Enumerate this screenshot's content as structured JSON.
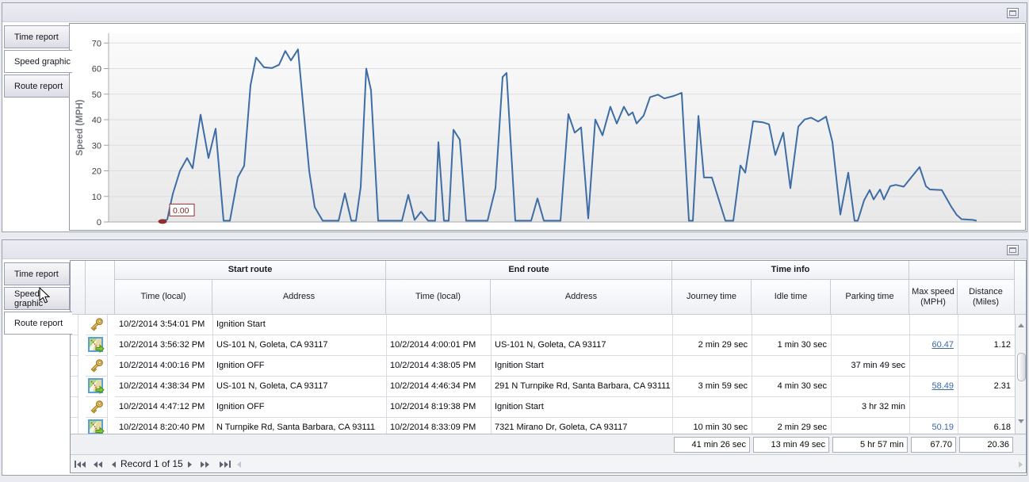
{
  "tabs": {
    "items": [
      "Time report",
      "Speed graphic",
      "Route report"
    ]
  },
  "top_panel": {
    "selected_tab": "Speed graphic"
  },
  "bottom_panel": {
    "selected_tab": "Route report"
  },
  "chart_data": {
    "type": "line",
    "title": "",
    "xlabel": "",
    "ylabel": "Speed (MPH)",
    "ylim": [
      0,
      73.8
    ],
    "yticks": [
      0,
      10,
      20,
      30,
      40,
      50,
      60,
      70
    ],
    "grid": "horizontal",
    "legend": "none",
    "line_color": "#3e6da5",
    "annotation": {
      "label": "0.00",
      "value": 0,
      "marker_color": "#8e2f2f"
    },
    "series": [
      {
        "name": "Speed (MPH)",
        "points": [
          [
            5.91,
            0.5
          ],
          [
            6.43,
            1
          ],
          [
            7.04,
            11
          ],
          [
            7.82,
            20
          ],
          [
            8.6,
            25
          ],
          [
            9.21,
            21
          ],
          [
            10.08,
            42
          ],
          [
            10.95,
            25
          ],
          [
            11.73,
            36.5
          ],
          [
            12.6,
            0.5
          ],
          [
            13.29,
            0.5
          ],
          [
            14.16,
            17.5
          ],
          [
            14.86,
            22
          ],
          [
            15.55,
            53.5
          ],
          [
            16.16,
            64.3
          ],
          [
            17.03,
            60.5
          ],
          [
            17.9,
            60.2
          ],
          [
            18.68,
            61.5
          ],
          [
            19.37,
            66.9
          ],
          [
            19.98,
            63.2
          ],
          [
            20.76,
            67.5
          ],
          [
            21.98,
            20
          ],
          [
            22.59,
            5.8
          ],
          [
            23.46,
            0.5
          ],
          [
            25.2,
            0.5
          ],
          [
            25.89,
            11.2
          ],
          [
            26.59,
            0.5
          ],
          [
            27.11,
            0.5
          ],
          [
            27.63,
            13.7
          ],
          [
            28.24,
            60
          ],
          [
            28.76,
            51.5
          ],
          [
            29.54,
            0.5
          ],
          [
            32.15,
            0.5
          ],
          [
            32.84,
            10.6
          ],
          [
            33.54,
            0.8
          ],
          [
            34.23,
            4
          ],
          [
            35.01,
            0.5
          ],
          [
            35.79,
            0.5
          ],
          [
            36.14,
            31.2
          ],
          [
            36.75,
            0.5
          ],
          [
            37.27,
            0.5
          ],
          [
            37.79,
            36.1
          ],
          [
            38.49,
            32.2
          ],
          [
            39.18,
            0.5
          ],
          [
            41.53,
            0.5
          ],
          [
            42.4,
            13.2
          ],
          [
            43.18,
            56.7
          ],
          [
            43.61,
            58.3
          ],
          [
            44.57,
            0.5
          ],
          [
            46.31,
            0.5
          ],
          [
            47.0,
            9.2
          ],
          [
            47.7,
            0.5
          ],
          [
            49.52,
            0.5
          ],
          [
            50.39,
            42.2
          ],
          [
            51.09,
            34.9
          ],
          [
            51.78,
            37
          ],
          [
            52.56,
            1.4
          ],
          [
            53.34,
            40.1
          ],
          [
            54.13,
            33.9
          ],
          [
            54.99,
            45.1
          ],
          [
            55.69,
            38.5
          ],
          [
            56.47,
            45.1
          ],
          [
            56.99,
            41.7
          ],
          [
            57.43,
            42.9
          ],
          [
            57.86,
            38.5
          ],
          [
            58.64,
            41.6
          ],
          [
            59.34,
            48.8
          ],
          [
            60.21,
            49.8
          ],
          [
            60.9,
            48.3
          ],
          [
            61.95,
            49.3
          ],
          [
            62.81,
            50.5
          ],
          [
            63.6,
            0.5
          ],
          [
            64.03,
            0.5
          ],
          [
            64.64,
            41.5
          ],
          [
            65.25,
            17.4
          ],
          [
            66.12,
            17.4
          ],
          [
            67.59,
            0.5
          ],
          [
            68.46,
            0.5
          ],
          [
            69.24,
            22.1
          ],
          [
            69.77,
            19.3
          ],
          [
            70.63,
            39.4
          ],
          [
            71.68,
            39.0
          ],
          [
            72.37,
            38.2
          ],
          [
            73.07,
            26.2
          ],
          [
            73.94,
            34.9
          ],
          [
            74.72,
            13.2
          ],
          [
            75.59,
            37.3
          ],
          [
            76.28,
            40.1
          ],
          [
            76.98,
            40.8
          ],
          [
            77.76,
            39.3
          ],
          [
            78.63,
            41.2
          ],
          [
            79.32,
            31.3
          ],
          [
            80.19,
            2.9
          ],
          [
            81.06,
            19.3
          ],
          [
            81.75,
            0.5
          ],
          [
            82.1,
            0.5
          ],
          [
            82.8,
            8.5
          ],
          [
            83.41,
            12.5
          ],
          [
            83.84,
            8.8
          ],
          [
            84.54,
            12.7
          ],
          [
            84.97,
            8.8
          ],
          [
            85.66,
            14
          ],
          [
            86.27,
            14.5
          ],
          [
            87.14,
            13.8
          ],
          [
            88.88,
            21.5
          ],
          [
            89.57,
            14
          ],
          [
            90.01,
            12.7
          ],
          [
            91.31,
            12.5
          ],
          [
            92.35,
            6
          ],
          [
            92.96,
            2.7
          ],
          [
            93.48,
            1.1
          ],
          [
            94.7,
            0.8
          ],
          [
            95.13,
            0.5
          ]
        ]
      }
    ]
  },
  "grid": {
    "headers": {
      "start_route": "Start route",
      "end_route": "End route",
      "time_info": "Time info",
      "time_local": "Time (local)",
      "address": "Address",
      "journey": "Journey time",
      "idle": "Idle time",
      "parking": "Parking time",
      "max_speed": "Max speed (MPH)",
      "distance": "Distance (Miles)"
    },
    "rows": [
      {
        "icon": "key",
        "start_time": "10/2/2014 3:54:01 PM",
        "start_address": "Ignition Start",
        "end_time": "",
        "end_address": "",
        "journey": "",
        "idle": "",
        "parking": "",
        "max_speed": "",
        "distance": ""
      },
      {
        "icon": "route",
        "start_time": "10/2/2014 3:56:32 PM",
        "start_address": "US-101 N, Goleta, CA 93117",
        "end_time": "10/2/2014 4:00:01 PM",
        "end_address": "US-101 N, Goleta, CA 93117",
        "journey": "2 min 29 sec",
        "idle": "1 min 30 sec",
        "parking": "",
        "max_speed": "60.47",
        "max_speed_underline": true,
        "distance": "1.12"
      },
      {
        "icon": "key",
        "start_time": "10/2/2014 4:00:16 PM",
        "start_address": "Ignition OFF",
        "end_time": "10/2/2014 4:38:05 PM",
        "end_address": "Ignition Start",
        "journey": "",
        "idle": "",
        "parking": "37 min 49 sec",
        "max_speed": "",
        "distance": ""
      },
      {
        "icon": "route",
        "start_time": "10/2/2014 4:38:34 PM",
        "start_address": "US-101 N, Goleta, CA 93117",
        "end_time": "10/2/2014 4:46:34 PM",
        "end_address": "291 N Turnpike Rd, Santa Barbara, CA 93111",
        "journey": "3 min 59 sec",
        "idle": "4 min 30 sec",
        "parking": "",
        "max_speed": "58.49",
        "max_speed_underline": true,
        "distance": "2.31"
      },
      {
        "icon": "key",
        "start_time": "10/2/2014 4:47:12 PM",
        "start_address": "Ignition OFF",
        "end_time": "10/2/2014 8:19:38 PM",
        "end_address": "Ignition Start",
        "journey": "",
        "idle": "",
        "parking": "3 hr 32 min",
        "max_speed": "",
        "distance": ""
      },
      {
        "icon": "route",
        "start_time": "10/2/2014 8:20:40 PM",
        "start_address": "N Turnpike Rd, Santa Barbara, CA 93111",
        "end_time": "10/2/2014 8:33:09 PM",
        "end_address": "7321 Mirano Dr, Goleta, CA 93117",
        "journey": "10 min 30 sec",
        "idle": "2 min 29 sec",
        "parking": "",
        "max_speed": "50.19",
        "max_speed_underline": false,
        "distance": "6.18"
      }
    ],
    "summary": {
      "journey": "41 min 26 sec",
      "idle": "13 min 49 sec",
      "parking": "5 hr 57 min",
      "max_speed": "67.70",
      "distance": "20.36"
    },
    "navigator": {
      "record_text": "Record 1 of 15"
    }
  }
}
